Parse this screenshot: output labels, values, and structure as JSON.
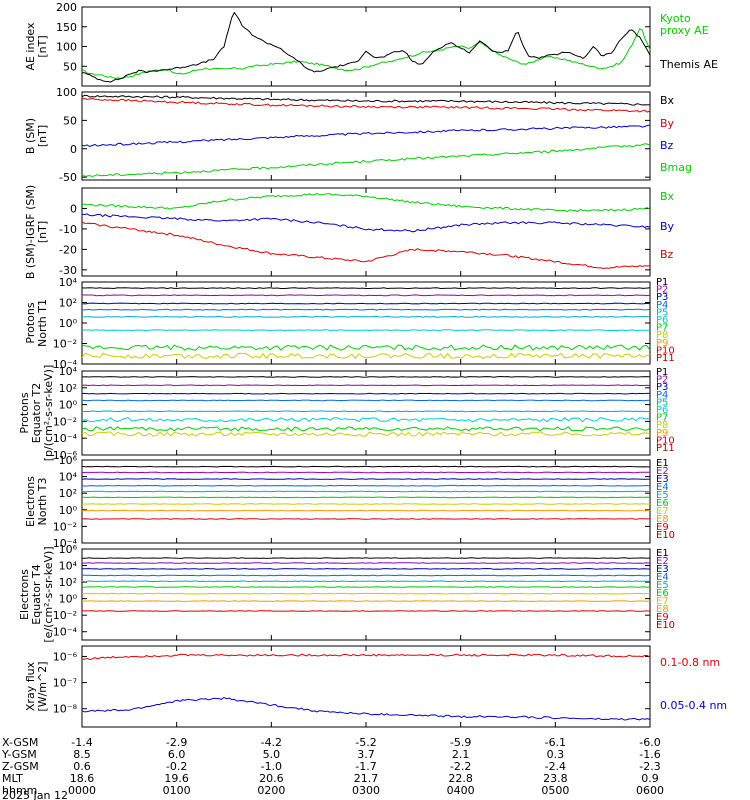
{
  "chart_data": [
    {
      "type": "line",
      "panel": "ae",
      "ylabel": [
        "AE index",
        "[nT]"
      ],
      "ylim": [
        0,
        200
      ],
      "yticks": [
        {
          "v": 200,
          "label": "200"
        },
        {
          "v": 150,
          "label": "150"
        },
        {
          "v": 100,
          "label": "100"
        },
        {
          "v": 50,
          "label": "50"
        }
      ],
      "xlim": [
        0,
        6
      ],
      "series": [
        {
          "name": "Kyoto proxy AE",
          "color": "#00cc00",
          "x": [
            0,
            0.1,
            0.2,
            0.3,
            0.4,
            0.5,
            0.6,
            0.7,
            0.8,
            0.9,
            1.0,
            1.1,
            1.2,
            1.3,
            1.4,
            1.5,
            1.6,
            1.7,
            1.8,
            1.9,
            2.0,
            2.1,
            2.2,
            2.3,
            2.4,
            2.5,
            2.6,
            2.7,
            2.8,
            2.9,
            3.0,
            3.1,
            3.2,
            3.3,
            3.4,
            3.5,
            3.6,
            3.7,
            3.8,
            3.9,
            4.0,
            4.1,
            4.2,
            4.3,
            4.4,
            4.5,
            4.6,
            4.7,
            4.8,
            4.9,
            5.0,
            5.1,
            5.2,
            5.3,
            5.4,
            5.5,
            5.6,
            5.7,
            5.8,
            5.9,
            6.0
          ],
          "y": [
            40,
            30,
            28,
            22,
            20,
            24,
            30,
            38,
            40,
            42,
            30,
            32,
            40,
            45,
            43,
            42,
            45,
            44,
            50,
            52,
            55,
            57,
            60,
            62,
            58,
            55,
            50,
            45,
            40,
            42,
            48,
            55,
            60,
            63,
            72,
            78,
            85,
            88,
            92,
            98,
            100,
            95,
            110,
            95,
            80,
            70,
            60,
            55,
            65,
            75,
            70,
            68,
            60,
            55,
            48,
            45,
            50,
            60,
            100,
            150,
            90
          ]
        },
        {
          "name": "Themis AE",
          "color": "#000000",
          "x": [
            0,
            0.1,
            0.2,
            0.3,
            0.4,
            0.5,
            0.6,
            0.7,
            0.8,
            0.9,
            1.0,
            1.1,
            1.2,
            1.3,
            1.4,
            1.5,
            1.6,
            1.7,
            1.8,
            1.9,
            2.0,
            2.1,
            2.2,
            2.3,
            2.4,
            2.5,
            2.6,
            2.7,
            2.8,
            2.9,
            3.0,
            3.1,
            3.2,
            3.3,
            3.4,
            3.5,
            3.6,
            3.7,
            3.8,
            3.9,
            4.0,
            4.1,
            4.2,
            4.3,
            4.4,
            4.5,
            4.6,
            4.7,
            4.8,
            4.9,
            5.0,
            5.1,
            5.2,
            5.3,
            5.4,
            5.5,
            5.6,
            5.7,
            5.8,
            5.9,
            6.0
          ],
          "y": [
            35,
            25,
            15,
            12,
            18,
            30,
            38,
            35,
            40,
            42,
            45,
            50,
            55,
            60,
            70,
            100,
            190,
            150,
            130,
            115,
            105,
            95,
            75,
            60,
            40,
            35,
            45,
            50,
            55,
            60,
            90,
            70,
            75,
            85,
            90,
            60,
            55,
            85,
            100,
            110,
            95,
            85,
            115,
            95,
            85,
            90,
            140,
            80,
            70,
            75,
            80,
            85,
            80,
            70,
            100,
            75,
            85,
            120,
            145,
            120,
            80
          ]
        }
      ]
    },
    {
      "type": "line",
      "panel": "b_sm",
      "ylabel": [
        "B (SM)",
        "[nT]"
      ],
      "ylim": [
        -55,
        100
      ],
      "yticks": [
        {
          "v": 100,
          "label": "100"
        },
        {
          "v": 50,
          "label": "50"
        },
        {
          "v": 0,
          "label": "0"
        },
        {
          "v": -50,
          "label": "-50"
        }
      ],
      "xlim": [
        0,
        6
      ],
      "series": [
        {
          "name": "Bx",
          "color": "#000000",
          "x": [
            0,
            1,
            2,
            3,
            4,
            5,
            6
          ],
          "y": [
            93,
            91,
            87,
            84,
            84,
            81,
            78
          ]
        },
        {
          "name": "By",
          "color": "#dd0000",
          "x": [
            0,
            1,
            2,
            3,
            4,
            5,
            6
          ],
          "y": [
            88,
            82,
            77,
            74,
            73,
            70,
            66
          ]
        },
        {
          "name": "Bz",
          "color": "#0000cc",
          "x": [
            0,
            1,
            2,
            3,
            4,
            5,
            6
          ],
          "y": [
            5,
            12,
            20,
            27,
            32,
            36,
            40
          ]
        },
        {
          "name": "Bmag",
          "color": "#00cc00",
          "x": [
            0,
            1,
            2,
            3,
            4,
            5,
            6
          ],
          "y": [
            -48,
            -42,
            -33,
            -22,
            -13,
            -4,
            8
          ]
        }
      ]
    },
    {
      "type": "line",
      "panel": "b_igrf",
      "ylabel": [
        "B (SM)-IGRF (SM)",
        "[nT]"
      ],
      "ylim": [
        -33,
        10
      ],
      "yticks": [
        {
          "v": 0,
          "label": "0"
        },
        {
          "v": -10,
          "label": "-10"
        },
        {
          "v": -20,
          "label": "-20"
        },
        {
          "v": -30,
          "label": "-30"
        }
      ],
      "xlim": [
        0,
        6
      ],
      "series": [
        {
          "name": "Bx",
          "color": "#00cc00",
          "x": [
            0,
            0.5,
            1,
            1.5,
            2,
            2.5,
            3,
            3.5,
            4,
            4.5,
            5,
            5.5,
            6
          ],
          "y": [
            2,
            1,
            0,
            4,
            6,
            7,
            6,
            3,
            1,
            0,
            -1,
            -1,
            0
          ]
        },
        {
          "name": "By",
          "color": "#0000cc",
          "x": [
            0,
            0.5,
            1,
            1.5,
            2,
            2.5,
            3,
            3.5,
            4,
            4.5,
            5,
            5.5,
            6
          ],
          "y": [
            -3,
            -4,
            -5,
            -6,
            -5,
            -7,
            -10,
            -11,
            -8,
            -7,
            -7,
            -8,
            -9
          ]
        },
        {
          "name": "Bz",
          "color": "#dd0000",
          "x": [
            0,
            0.5,
            1,
            1.5,
            2,
            2.5,
            3,
            3.5,
            4,
            4.5,
            5,
            5.5,
            6
          ],
          "y": [
            -7,
            -10,
            -13,
            -18,
            -22,
            -24,
            -26,
            -20,
            -21,
            -23,
            -26,
            -29,
            -28
          ]
        }
      ]
    },
    {
      "type": "line",
      "panel": "protons_north",
      "ylabel": [
        "Protons",
        "North T1"
      ],
      "scale": "log",
      "ylim": [
        -4,
        4
      ],
      "yticks": [
        {
          "v": 4,
          "label": "10⁴"
        },
        {
          "v": 2,
          "label": "10²"
        },
        {
          "v": 0,
          "label": "10⁰"
        },
        {
          "v": -2,
          "label": "10⁻²"
        },
        {
          "v": -4,
          "label": "10⁻⁴"
        }
      ],
      "xlim": [
        0,
        6
      ],
      "series": [
        {
          "name": "P1",
          "color": "#000000",
          "y": 3.4
        },
        {
          "name": "P2",
          "color": "#9900aa",
          "y": 2.7
        },
        {
          "name": "P3",
          "color": "#0000aa",
          "y": 1.9
        },
        {
          "name": "P4",
          "color": "#0066ff",
          "y": 1.3
        },
        {
          "name": "P5",
          "color": "#00aacc",
          "y": 0.6
        },
        {
          "name": "P6",
          "color": "#00cccc",
          "y": -0.7
        },
        {
          "name": "P7",
          "color": "#00cc00",
          "y": -2.4
        },
        {
          "name": "P8",
          "color": "#cccc00",
          "y": -3.2
        },
        {
          "name": "P9",
          "color": "#ff9900",
          "y": null
        },
        {
          "name": "P10",
          "color": "#dd0000",
          "y": null
        },
        {
          "name": "P11",
          "color": "#aa0000",
          "y": null
        }
      ]
    },
    {
      "type": "line",
      "panel": "protons_equator",
      "ylabel": [
        "Protons",
        "Equator T2",
        "[p/(cm²-s-sr-keV)]"
      ],
      "scale": "log",
      "ylim": [
        -6,
        4
      ],
      "yticks": [
        {
          "v": 4,
          "label": "10⁴"
        },
        {
          "v": 2,
          "label": "10²"
        },
        {
          "v": 0,
          "label": "10⁰"
        },
        {
          "v": -2,
          "label": "10⁻²"
        },
        {
          "v": -4,
          "label": "10⁻⁴"
        },
        {
          "v": -6,
          "label": "10⁻⁶"
        }
      ],
      "xlim": [
        0,
        6
      ],
      "series": [
        {
          "name": "P1",
          "color": "#000000",
          "y": 3.3
        },
        {
          "name": "P2",
          "color": "#9900aa",
          "y": 2.3
        },
        {
          "name": "P3",
          "color": "#0000aa",
          "y": 1.3
        },
        {
          "name": "P4",
          "color": "#0066ff",
          "y": 0.5
        },
        {
          "name": "P5",
          "color": "#00aacc",
          "y": -0.8
        },
        {
          "name": "P6",
          "color": "#00cccc",
          "y": -1.8
        },
        {
          "name": "P7",
          "color": "#00cc00",
          "y": -2.9
        },
        {
          "name": "P8",
          "color": "#cccc00",
          "y": -3.5
        },
        {
          "name": "P9",
          "color": "#ff9900",
          "y": null
        },
        {
          "name": "P10",
          "color": "#dd0000",
          "y": null
        },
        {
          "name": "P11",
          "color": "#aa0000",
          "y": null
        }
      ]
    },
    {
      "type": "line",
      "panel": "electrons_north",
      "ylabel": [
        "Electrons",
        "North T3"
      ],
      "scale": "log",
      "ylim": [
        -4,
        6
      ],
      "yticks": [
        {
          "v": 6,
          "label": "10⁶"
        },
        {
          "v": 4,
          "label": "10⁴"
        },
        {
          "v": 2,
          "label": "10²"
        },
        {
          "v": 0,
          "label": "10⁰"
        },
        {
          "v": -2,
          "label": "10⁻²"
        },
        {
          "v": -4,
          "label": "10⁻⁴"
        }
      ],
      "xlim": [
        0,
        6
      ],
      "series": [
        {
          "name": "E1",
          "color": "#000000",
          "y": 5.2
        },
        {
          "name": "E2",
          "color": "#9900aa",
          "y": 4.5
        },
        {
          "name": "E3",
          "color": "#0000aa",
          "y": 3.7
        },
        {
          "name": "E4",
          "color": "#0066ff",
          "y": 2.9
        },
        {
          "name": "E5",
          "color": "#00aacc",
          "y": 2.2
        },
        {
          "name": "E6",
          "color": "#00cc00",
          "y": 1.5
        },
        {
          "name": "E7",
          "color": "#cccc00",
          "y": 0.7
        },
        {
          "name": "E8",
          "color": "#ff9900",
          "y": -0.1
        },
        {
          "name": "E9",
          "color": "#dd0000",
          "y": -1.1
        },
        {
          "name": "E10",
          "color": "#aa0000",
          "y": null
        }
      ]
    },
    {
      "type": "line",
      "panel": "electrons_equator",
      "ylabel": [
        "Electrons",
        "Equator T4",
        "[e/(cm²-s-sr-keV)]"
      ],
      "scale": "log",
      "ylim": [
        -5,
        6
      ],
      "yticks": [
        {
          "v": 6,
          "label": "10⁶"
        },
        {
          "v": 4,
          "label": "10⁴"
        },
        {
          "v": 2,
          "label": "10²"
        },
        {
          "v": 0,
          "label": "10⁰"
        },
        {
          "v": -2,
          "label": "10⁻²"
        },
        {
          "v": -4,
          "label": "10⁻⁴"
        }
      ],
      "xlim": [
        0,
        6
      ],
      "series": [
        {
          "name": "E1",
          "color": "#000000",
          "y": 4.9
        },
        {
          "name": "E2",
          "color": "#9900aa",
          "y": 4.3
        },
        {
          "name": "E3",
          "color": "#0000aa",
          "y": 3.6
        },
        {
          "name": "E4",
          "color": "#0066ff",
          "y": 2.8
        },
        {
          "name": "E5",
          "color": "#00aacc",
          "y": 2.1
        },
        {
          "name": "E6",
          "color": "#00cc00",
          "y": 1.4
        },
        {
          "name": "E7",
          "color": "#cccc00",
          "y": 0.6
        },
        {
          "name": "E8",
          "color": "#ff9900",
          "y": -0.3
        },
        {
          "name": "E9",
          "color": "#dd0000",
          "y": -1.5
        },
        {
          "name": "E10",
          "color": "#aa0000",
          "y": null
        }
      ]
    },
    {
      "type": "line",
      "panel": "xray",
      "ylabel": [
        "Xray flux",
        "[W/m^2]"
      ],
      "scale": "log",
      "ylim": [
        -8.7,
        -5.6
      ],
      "yticks": [
        {
          "v": -6,
          "label": "10⁻⁶"
        },
        {
          "v": -7,
          "label": "10⁻⁷"
        },
        {
          "v": -8,
          "label": "10⁻⁸"
        }
      ],
      "xlim": [
        0,
        6
      ],
      "series": [
        {
          "name": "0.1-0.8 nm",
          "color": "#dd0000",
          "x": [
            0,
            0.5,
            1,
            2,
            3,
            4,
            5,
            6
          ],
          "y": [
            -6.1,
            -6.0,
            -5.95,
            -5.95,
            -5.95,
            -5.95,
            -5.95,
            -6.0
          ]
        },
        {
          "name": "0.05-0.4 nm",
          "color": "#0000cc",
          "x": [
            0,
            0.5,
            1,
            1.5,
            2,
            2.5,
            3,
            3.5,
            4,
            4.5,
            5,
            5.5,
            6
          ],
          "y": [
            -8.1,
            -8.05,
            -7.7,
            -7.6,
            -7.85,
            -8.1,
            -8.2,
            -8.25,
            -8.3,
            -8.3,
            -8.35,
            -8.4,
            -8.4
          ]
        }
      ]
    }
  ],
  "legends": {
    "ae": [
      "Kyoto",
      "proxy AE",
      "Themis AE"
    ],
    "b_sm": [
      "Bx",
      "By",
      "Bz",
      "Bmag"
    ],
    "b_igrf": [
      "Bx",
      "By",
      "Bz"
    ],
    "protons_north": [
      "P1",
      "P2",
      "P3",
      "P4",
      "P5",
      "P6",
      "P7",
      "P8",
      "P9",
      "P10",
      "P11"
    ],
    "protons_equator": [
      "P1",
      "P2",
      "P3",
      "P4",
      "P5",
      "P6",
      "P7",
      "P8",
      "P9",
      "P10",
      "P11"
    ],
    "electrons_north": [
      "E1",
      "E2",
      "E3",
      "E4",
      "E5",
      "E6",
      "E7",
      "E8",
      "E9",
      "E10"
    ],
    "electrons_equator": [
      "E1",
      "E2",
      "E3",
      "E4",
      "E5",
      "E6",
      "E7",
      "E8",
      "E9",
      "E10"
    ],
    "xray": [
      "0.1-0.8 nm",
      "0.05-0.4 nm"
    ]
  },
  "footer": {
    "row_labels": [
      "X-GSM",
      "Y-GSM",
      "Z-GSM",
      "MLT",
      "hhmm",
      "2025 Jan 12"
    ],
    "columns": [
      [
        "-1.4",
        "8.5",
        "0.6",
        "18.6",
        "0000"
      ],
      [
        "-2.9",
        "6.0",
        "-0.2",
        "19.6",
        "0100"
      ],
      [
        "-4.2",
        "5.0",
        "-1.0",
        "20.6",
        "0200"
      ],
      [
        "-5.2",
        "3.7",
        "-1.7",
        "21.7",
        "0300"
      ],
      [
        "-5.9",
        "2.1",
        "-2.2",
        "22.8",
        "0400"
      ],
      [
        "-6.1",
        "0.3",
        "-2.4",
        "23.8",
        "0500"
      ],
      [
        "-6.0",
        "-1.6",
        "-2.3",
        "0.9",
        "0600"
      ]
    ]
  }
}
